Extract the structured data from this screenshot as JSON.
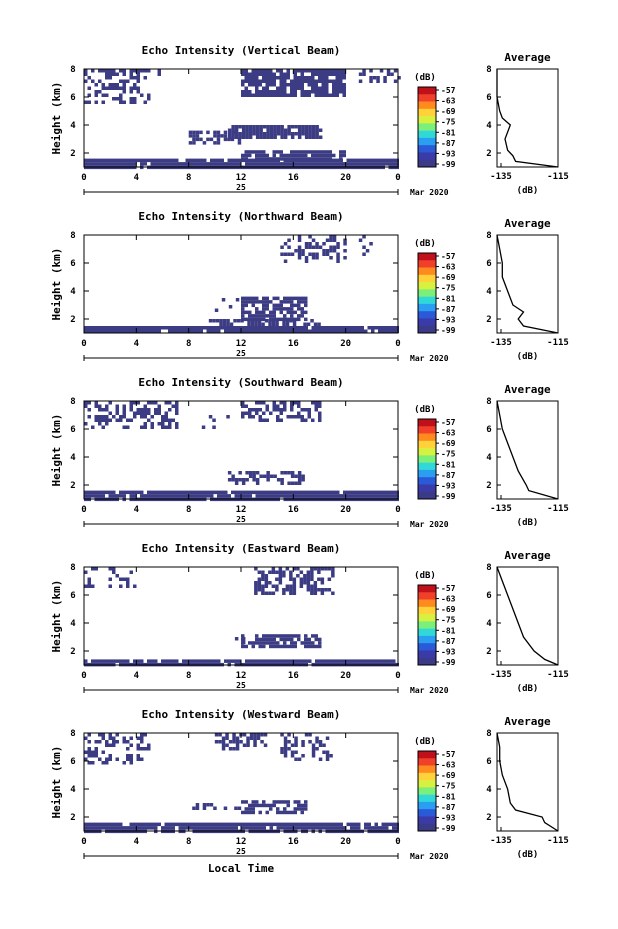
{
  "colorbar": {
    "unit": "(dB)",
    "labels": [
      "-57",
      "-63",
      "-69",
      "-75",
      "-81",
      "-87",
      "-93",
      "-99"
    ],
    "colors": [
      "#c0101a",
      "#f0402a",
      "#ff8a1e",
      "#ffd23a",
      "#d8f040",
      "#7af07a",
      "#30d8d8",
      "#2a9ef0",
      "#2a5ad8",
      "#3a3aa8",
      "#3a3a88"
    ]
  },
  "x_axis": {
    "ticks": [
      "0",
      "4",
      "8",
      "12",
      "16",
      "20",
      "0"
    ],
    "date_label": "25",
    "month_label": "Mar 2020",
    "xlabel": "Local Time"
  },
  "y_axis": {
    "label": "Height (km)",
    "ticks": [
      "2",
      "4",
      "6",
      "8"
    ]
  },
  "average": {
    "title": "Average",
    "xunit": "(dB)",
    "xticks": [
      "-135",
      "-115"
    ]
  },
  "chart_data": [
    {
      "type": "heatmap",
      "title": "Echo Intensity (Vertical Beam)",
      "xlabel": "",
      "ylabel": "Height (km)",
      "xlim": [
        0,
        24
      ],
      "ylim": [
        1,
        8
      ],
      "echo_regions": [
        {
          "t0": 0,
          "t1": 24,
          "h0": 1.0,
          "h1": 1.6,
          "density": 0.95
        },
        {
          "t0": 12,
          "t1": 20,
          "h0": 1.6,
          "h1": 2.2,
          "density": 0.8
        },
        {
          "t0": 8,
          "t1": 12,
          "h0": 2.8,
          "h1": 3.6,
          "density": 0.5
        },
        {
          "t0": 11,
          "t1": 18,
          "h0": 3.0,
          "h1": 4.0,
          "density": 0.85
        },
        {
          "t0": 0,
          "t1": 5,
          "h0": 5.5,
          "h1": 7.5,
          "density": 0.45
        },
        {
          "t0": 0,
          "t1": 6,
          "h0": 7.5,
          "h1": 8.0,
          "density": 0.6
        },
        {
          "t0": 12,
          "t1": 20,
          "h0": 6.2,
          "h1": 8.0,
          "density": 0.8
        },
        {
          "t0": 21,
          "t1": 24,
          "h0": 7.0,
          "h1": 8.0,
          "density": 0.4
        }
      ],
      "average_profile": {
        "height": [
          1,
          1.4,
          1.8,
          2.2,
          3,
          4,
          4.5,
          5,
          6,
          7,
          8
        ],
        "value": [
          -115,
          -131,
          -132,
          -134,
          -135,
          -133,
          -136,
          -137,
          -138,
          -138,
          -138
        ]
      }
    },
    {
      "type": "heatmap",
      "title": "Echo Intensity (Northward Beam)",
      "xlabel": "",
      "ylabel": "Height (km)",
      "xlim": [
        0,
        24
      ],
      "ylim": [
        1,
        8
      ],
      "echo_regions": [
        {
          "t0": 0,
          "t1": 24,
          "h0": 1.0,
          "h1": 1.5,
          "density": 0.95
        },
        {
          "t0": 9,
          "t1": 18,
          "h0": 1.5,
          "h1": 2.0,
          "density": 0.6
        },
        {
          "t0": 12,
          "t1": 17,
          "h0": 2.0,
          "h1": 3.6,
          "density": 0.8
        },
        {
          "t0": 10,
          "t1": 12,
          "h0": 2.5,
          "h1": 3.5,
          "density": 0.3
        },
        {
          "t0": 15,
          "t1": 20,
          "h0": 6.0,
          "h1": 8.0,
          "density": 0.4
        },
        {
          "t0": 21,
          "t1": 22,
          "h0": 6.0,
          "h1": 8.0,
          "density": 0.3
        }
      ],
      "average_profile": {
        "height": [
          1,
          1.5,
          2,
          2.5,
          3,
          4,
          5,
          6,
          7,
          8
        ],
        "value": [
          -115,
          -128,
          -130,
          -128,
          -132,
          -134,
          -136,
          -136,
          -137,
          -138
        ]
      }
    },
    {
      "type": "heatmap",
      "title": "Echo Intensity (Southward Beam)",
      "xlabel": "",
      "ylabel": "Height (km)",
      "xlim": [
        0,
        24
      ],
      "ylim": [
        1,
        8
      ],
      "echo_regions": [
        {
          "t0": 0,
          "t1": 24,
          "h0": 1.0,
          "h1": 1.6,
          "density": 0.95
        },
        {
          "t0": 11,
          "t1": 17,
          "h0": 2.2,
          "h1": 3.0,
          "density": 0.5
        },
        {
          "t0": 0,
          "t1": 7,
          "h0": 6.0,
          "h1": 8.0,
          "density": 0.45
        },
        {
          "t0": 12,
          "t1": 18,
          "h0": 6.5,
          "h1": 8.0,
          "density": 0.45
        },
        {
          "t0": 9,
          "t1": 11,
          "h0": 6.0,
          "h1": 7.0,
          "density": 0.2
        }
      ],
      "average_profile": {
        "height": [
          1,
          1.6,
          2,
          3,
          4,
          5,
          6,
          7,
          8
        ],
        "value": [
          -115,
          -126,
          -127,
          -130,
          -132,
          -134,
          -136,
          -137,
          -138
        ]
      }
    },
    {
      "type": "heatmap",
      "title": "Echo Intensity (Eastward Beam)",
      "xlabel": "",
      "ylabel": "Height (km)",
      "xlim": [
        0,
        24
      ],
      "ylim": [
        1,
        8
      ],
      "echo_regions": [
        {
          "t0": 0,
          "t1": 24,
          "h0": 1.0,
          "h1": 1.4,
          "density": 0.95
        },
        {
          "t0": 12,
          "t1": 18,
          "h0": 2.2,
          "h1": 3.2,
          "density": 0.7
        },
        {
          "t0": 11,
          "t1": 13,
          "h0": 2.5,
          "h1": 3.0,
          "density": 0.25
        },
        {
          "t0": 13,
          "t1": 19,
          "h0": 6.0,
          "h1": 8.0,
          "density": 0.55
        },
        {
          "t0": 0,
          "t1": 4,
          "h0": 6.5,
          "h1": 8.0,
          "density": 0.25
        }
      ],
      "average_profile": {
        "height": [
          1,
          1.4,
          2,
          3,
          4,
          5,
          6,
          7,
          8
        ],
        "value": [
          -115,
          -120,
          -124,
          -128,
          -130,
          -132,
          -134,
          -136,
          -138
        ]
      }
    },
    {
      "type": "heatmap",
      "title": "Echo Intensity (Westward Beam)",
      "xlabel": "Local Time",
      "ylabel": "Height (km)",
      "xlim": [
        0,
        24
      ],
      "ylim": [
        1,
        8
      ],
      "echo_regions": [
        {
          "t0": 0,
          "t1": 24,
          "h0": 1.0,
          "h1": 1.6,
          "density": 0.9
        },
        {
          "t0": 12,
          "t1": 17,
          "h0": 2.4,
          "h1": 3.2,
          "density": 0.6
        },
        {
          "t0": 8,
          "t1": 12,
          "h0": 2.5,
          "h1": 3.0,
          "density": 0.25
        },
        {
          "t0": 10,
          "t1": 14,
          "h0": 6.8,
          "h1": 8.0,
          "density": 0.45
        },
        {
          "t0": 0,
          "t1": 5,
          "h0": 5.8,
          "h1": 8.0,
          "density": 0.3
        },
        {
          "t0": 15,
          "t1": 19,
          "h0": 6.0,
          "h1": 8.0,
          "density": 0.3
        }
      ],
      "average_profile": {
        "height": [
          1,
          1.6,
          2,
          2.5,
          3,
          4,
          5,
          6,
          7,
          8
        ],
        "value": [
          -115,
          -120,
          -121,
          -131,
          -133,
          -134,
          -136,
          -137,
          -137,
          -138
        ]
      }
    }
  ]
}
